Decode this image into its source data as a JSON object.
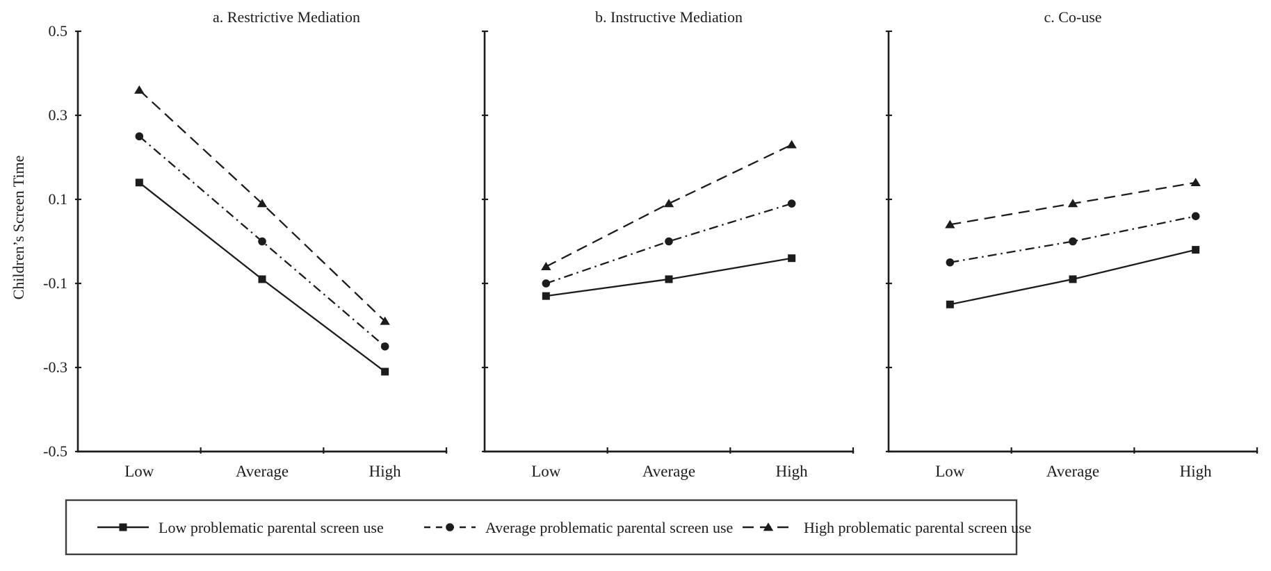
{
  "figure": {
    "background": "#ffffff",
    "ink": "#1c1c1c",
    "legend_border": "#3f3f3f"
  },
  "chart_data": {
    "type": "line",
    "categories": [
      "Low",
      "Average",
      "High"
    ],
    "ylabel": "Children’s Screen Time",
    "ylim": [
      -0.5,
      0.5
    ],
    "yticks": [
      0.5,
      0.3,
      0.1,
      -0.1,
      -0.3,
      -0.5
    ],
    "ytick_labels": [
      "0.5",
      "0.3",
      "0.1",
      "-0.1",
      "-0.3",
      "-0.5"
    ],
    "grid": false,
    "legend_position": "bottom-box",
    "series_styles": [
      {
        "name": "Low problematic parental screen use",
        "marker": "square",
        "line": "solid"
      },
      {
        "name": "Average problematic parental screen use",
        "marker": "circle",
        "line": "dashdot"
      },
      {
        "name": "High problematic parental screen use",
        "marker": "triangle",
        "line": "dashed"
      }
    ],
    "panels": [
      {
        "title": "a. Restrictive Mediation",
        "show_ytick_labels": true,
        "values": [
          [
            0.14,
            -0.09,
            -0.31
          ],
          [
            0.25,
            0.0,
            -0.25
          ],
          [
            0.36,
            0.09,
            -0.19
          ]
        ]
      },
      {
        "title": "b. Instructive Mediation",
        "show_ytick_labels": false,
        "values": [
          [
            -0.13,
            -0.09,
            -0.04
          ],
          [
            -0.1,
            0.0,
            0.09
          ],
          [
            -0.06,
            0.09,
            0.23
          ]
        ]
      },
      {
        "title": "c. Co-use",
        "show_ytick_labels": false,
        "values": [
          [
            -0.15,
            -0.09,
            -0.02
          ],
          [
            -0.05,
            0.0,
            0.06
          ],
          [
            0.04,
            0.09,
            0.14
          ]
        ]
      }
    ],
    "legend": [
      "Low problematic parental screen use",
      "Average problematic parental screen use",
      "High problematic parental screen use"
    ]
  }
}
